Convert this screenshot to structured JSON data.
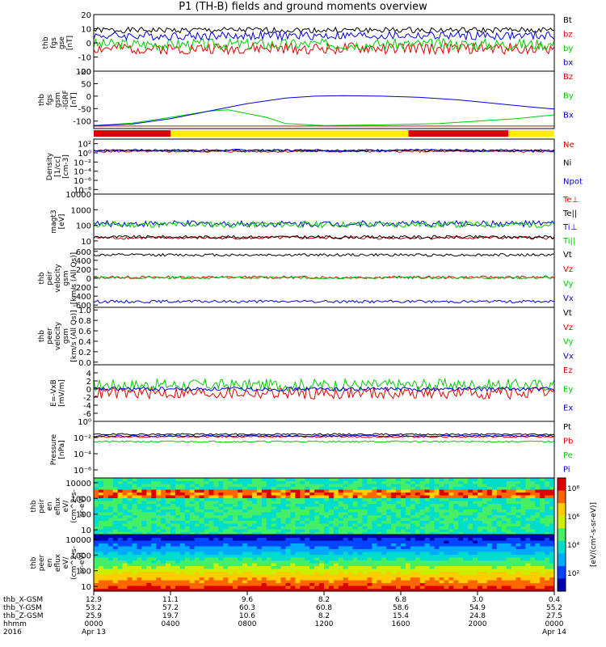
{
  "title": "P1 (TH-B) fields and ground moments overview",
  "colors": {
    "black": "#000000",
    "red": "#e00000",
    "green": "#00cc00",
    "blue": "#0000dd",
    "yellow": "#ffee00",
    "barRed": "#dd0000"
  },
  "chart_data": [
    {
      "type": "line",
      "id": "fgs",
      "ylabel": [
        "thb",
        "fgs",
        "gse",
        "[nT]"
      ],
      "ylim": [
        -20,
        20
      ],
      "yticks": [
        {
          "v": 20,
          "t": "20"
        },
        {
          "v": 10,
          "t": "10"
        },
        {
          "v": 0,
          "t": "0"
        },
        {
          "v": -10,
          "t": "-10"
        },
        {
          "v": -20,
          "t": "-20"
        }
      ],
      "series": [
        {
          "name": "Bt",
          "color": "black",
          "mode": "noise",
          "base": 9,
          "amp": 2,
          "seed": 1
        },
        {
          "name": "bz",
          "color": "red",
          "mode": "noise",
          "base": -4,
          "amp": 4,
          "seed": 2
        },
        {
          "name": "by",
          "color": "green",
          "mode": "noise",
          "base": -1,
          "amp": 4,
          "seed": 3
        },
        {
          "name": "bx",
          "color": "blue",
          "mode": "noise",
          "base": 5,
          "amp": 3,
          "seed": 4
        }
      ]
    },
    {
      "type": "line",
      "id": "fgsm",
      "ylabel": [
        "thb",
        "fgs",
        "gsm",
        "-IGRF",
        "[nT]"
      ],
      "ylim": [
        -130,
        100
      ],
      "yticks": [
        {
          "v": 100,
          "t": "100"
        },
        {
          "v": 50,
          "t": "50"
        },
        {
          "v": 0,
          "t": "0"
        },
        {
          "v": -50,
          "t": "-50"
        },
        {
          "v": -100,
          "t": "-100"
        }
      ],
      "series": [
        {
          "name": "Bz",
          "color": "red",
          "mode": "flat",
          "points": [
            [
              0,
              -120
            ],
            [
              24,
              -120
            ]
          ]
        },
        {
          "name": "By",
          "color": "green",
          "mode": "curve",
          "points": [
            [
              0,
              -118
            ],
            [
              2,
              -108
            ],
            [
              4,
              -85
            ],
            [
              6,
              -60
            ],
            [
              7,
              -55
            ],
            [
              9,
              -85
            ],
            [
              10,
              -110
            ],
            [
              12,
              -118
            ],
            [
              15,
              -115
            ],
            [
              18,
              -110
            ],
            [
              20,
              -100
            ],
            [
              22,
              -90
            ],
            [
              24,
              -75
            ]
          ]
        },
        {
          "name": "Bx",
          "color": "blue",
          "mode": "curve",
          "points": [
            [
              0,
              -118
            ],
            [
              2,
              -112
            ],
            [
              4,
              -90
            ],
            [
              6,
              -60
            ],
            [
              8,
              -30
            ],
            [
              10,
              -8
            ],
            [
              11.5,
              0
            ],
            [
              13,
              2
            ],
            [
              15,
              0
            ],
            [
              17,
              -5
            ],
            [
              19,
              -15
            ],
            [
              21,
              -30
            ],
            [
              23,
              -45
            ],
            [
              24,
              -52
            ]
          ]
        }
      ]
    },
    {
      "type": "bar",
      "id": "region_bar",
      "segments": [
        {
          "from": 0,
          "to": 4,
          "color": "barRed"
        },
        {
          "from": 4,
          "to": 16.4,
          "color": "yellow"
        },
        {
          "from": 16.4,
          "to": 21.6,
          "color": "barRed"
        },
        {
          "from": 21.6,
          "to": 24,
          "color": "yellow"
        }
      ]
    },
    {
      "type": "line",
      "id": "density",
      "log": true,
      "ylabel": [
        "Density",
        "[1/cc]",
        "[cm-3]"
      ],
      "ylim": [
        1e-09,
        1000
      ],
      "yticks": [
        {
          "v": 100,
          "t": "10²"
        },
        {
          "v": 1,
          "t": "10⁰"
        },
        {
          "v": 0.01,
          "t": "10⁻²"
        },
        {
          "v": 0.0001,
          "t": "10⁻⁴"
        },
        {
          "v": 1e-06,
          "t": "10⁻⁶"
        },
        {
          "v": 1e-08,
          "t": "10⁻⁸"
        }
      ],
      "series": [
        {
          "name": "Ne",
          "color": "red",
          "mode": "noise",
          "base": 0.3,
          "amp": 0.2,
          "seed": 5
        },
        {
          "name": "Ni",
          "color": "black",
          "mode": "noise",
          "base": 0.5,
          "amp": 0.2,
          "seed": 6
        },
        {
          "name": "Npot",
          "color": "blue",
          "mode": "noise",
          "base": 0.6,
          "amp": 0.2,
          "seed": 7
        }
      ]
    },
    {
      "type": "line",
      "id": "temperature",
      "log": true,
      "ylabel": [
        "magt3",
        "[eV]"
      ],
      "ylim": [
        3,
        10000
      ],
      "yticks": [
        {
          "v": 10000,
          "t": "10000"
        },
        {
          "v": 1000,
          "t": "1000"
        },
        {
          "v": 100,
          "t": "100"
        },
        {
          "v": 10,
          "t": "10"
        }
      ],
      "series": [
        {
          "name": "Te⊥",
          "color": "red",
          "mode": "noise",
          "base": 1.2,
          "amp": 0.1,
          "seed": 8
        },
        {
          "name": "Te||",
          "color": "black",
          "mode": "noise",
          "base": 1.25,
          "amp": 0.1,
          "seed": 9
        },
        {
          "name": "Ti⊥",
          "color": "blue",
          "mode": "noise",
          "base": 2.1,
          "amp": 0.2,
          "seed": 10
        },
        {
          "name": "Ti||",
          "color": "green",
          "mode": "noise",
          "base": 2.05,
          "amp": 0.2,
          "seed": 11
        }
      ]
    },
    {
      "type": "line",
      "id": "velocity_gsm",
      "ylabel": [
        "thb",
        "peir",
        "velocity",
        "gsm",
        "[km/s (All Qs)]"
      ],
      "ylim": [
        -650,
        650
      ],
      "yticks": [
        {
          "v": 600,
          "t": "600"
        },
        {
          "v": 400,
          "t": "400"
        },
        {
          "v": 200,
          "t": "200"
        },
        {
          "v": 0,
          "t": "0"
        },
        {
          "v": -200,
          "t": "-200"
        },
        {
          "v": -400,
          "t": "-400"
        },
        {
          "v": -600,
          "t": "-600"
        }
      ],
      "series": [
        {
          "name": "Vt",
          "color": "black",
          "mode": "noise",
          "base": 520,
          "amp": 30,
          "seed": 12
        },
        {
          "name": "Vz",
          "color": "red",
          "mode": "noise",
          "base": 20,
          "amp": 30,
          "seed": 13
        },
        {
          "name": "Vy",
          "color": "green",
          "mode": "noise",
          "base": 10,
          "amp": 25,
          "seed": 14
        },
        {
          "name": "Vx",
          "color": "blue",
          "mode": "noise",
          "base": -520,
          "amp": 30,
          "seed": 15
        }
      ]
    },
    {
      "type": "line",
      "id": "velocity_peer",
      "ylabel": [
        "thb",
        "peer",
        "velocity",
        "gsm",
        "[km/s (All Qs)]"
      ],
      "ylim": [
        -0.05,
        1.05
      ],
      "yticks": [
        {
          "v": 1,
          "t": "1.0"
        },
        {
          "v": 0.8,
          "t": "0.8"
        },
        {
          "v": 0.6,
          "t": "0.6"
        },
        {
          "v": 0.4,
          "t": "0.4"
        },
        {
          "v": 0.2,
          "t": "0.2"
        },
        {
          "v": 0,
          "t": "0.0"
        }
      ],
      "series": [
        {
          "name": "Vt",
          "color": "black",
          "points": []
        },
        {
          "name": "Vz",
          "color": "red",
          "points": []
        },
        {
          "name": "Vy",
          "color": "green",
          "points": []
        },
        {
          "name": "Vx",
          "color": "blue",
          "points": []
        }
      ]
    },
    {
      "type": "line",
      "id": "efield",
      "ylabel": [
        "E=-VxB",
        "[mV/m]"
      ],
      "ylim": [
        -8,
        6
      ],
      "yticks": [
        {
          "v": 4,
          "t": "4"
        },
        {
          "v": 2,
          "t": "2"
        },
        {
          "v": 0,
          "t": "0"
        },
        {
          "v": -2,
          "t": "-2"
        },
        {
          "v": -4,
          "t": "-4"
        },
        {
          "v": -6,
          "t": "-6"
        }
      ],
      "series": [
        {
          "name": "Ez",
          "color": "red",
          "mode": "noise",
          "base": -1,
          "amp": 1.5,
          "seed": 16
        },
        {
          "name": "Ey",
          "color": "green",
          "mode": "noise",
          "base": 1,
          "amp": 1.5,
          "seed": 17
        },
        {
          "name": "Ex",
          "color": "blue",
          "mode": "noise",
          "base": 0,
          "amp": 0.5,
          "seed": 18
        }
      ]
    },
    {
      "type": "line",
      "id": "pressure",
      "log": true,
      "ylabel": [
        "Pressure",
        "[nPa]"
      ],
      "ylim": [
        1e-07,
        1
      ],
      "yticks": [
        {
          "v": 1,
          "t": "10⁰"
        },
        {
          "v": 0.01,
          "t": "10⁻²"
        },
        {
          "v": 0.0001,
          "t": "10⁻⁴"
        },
        {
          "v": 1e-06,
          "t": "10⁻⁶"
        }
      ],
      "series": [
        {
          "name": "Pt",
          "color": "black",
          "mode": "noise",
          "base": -1.6,
          "amp": 0.1,
          "seed": 19
        },
        {
          "name": "Pb",
          "color": "red",
          "mode": "noise",
          "base": -1.9,
          "amp": 0.1,
          "seed": 20
        },
        {
          "name": "Pe",
          "color": "green",
          "mode": "noise",
          "base": -2.5,
          "amp": 0.1,
          "seed": 21
        },
        {
          "name": "Pi",
          "color": "blue",
          "mode": "noise",
          "base": -1.8,
          "amp": 0.1,
          "seed": 22
        }
      ]
    },
    {
      "type": "heatmap",
      "id": "peir_eflux",
      "ylabel": [
        "thb",
        "peir",
        "en",
        "eflux",
        "eV/",
        "(cm^2-s-",
        "sr-eV)"
      ],
      "log": true,
      "ylim": [
        5,
        20000
      ],
      "yticks": [
        {
          "v": 10000,
          "t": "10000"
        },
        {
          "v": 1000,
          "t": "1000"
        },
        {
          "v": 100,
          "t": "100"
        },
        {
          "v": 10,
          "t": "10"
        }
      ]
    },
    {
      "type": "heatmap",
      "id": "peer_eflux",
      "ylabel": [
        "thb",
        "peer",
        "en",
        "eflux",
        "eV/",
        "(cm^2-s-",
        "sr-eV)"
      ],
      "log": true,
      "ylim": [
        5,
        20000
      ],
      "yticks": [
        {
          "v": 10000,
          "t": "10000"
        },
        {
          "v": 1000,
          "t": "1000"
        },
        {
          "v": 100,
          "t": "100"
        },
        {
          "v": 10,
          "t": "10"
        }
      ]
    }
  ],
  "colorbar": {
    "label": "[eV/(cm²-s-sr-eV)]",
    "ticks": [
      "10⁸",
      "10⁶",
      "10⁴",
      "10²"
    ]
  },
  "xaxis": {
    "rows": [
      {
        "label": "thb_X-GSM",
        "values": [
          "12.9",
          "11.1",
          "9.6",
          "8.2",
          "6.8",
          "3.0",
          "0.4"
        ]
      },
      {
        "label": "thb_Y-GSM",
        "values": [
          "53.2",
          "57.2",
          "60.3",
          "60.8",
          "58.6",
          "54.9",
          "55.2"
        ]
      },
      {
        "label": "thb_Z-GSM",
        "values": [
          "25.9",
          "19.7",
          "10.6",
          "8.2",
          "15.4",
          "24.8",
          "27.5"
        ]
      },
      {
        "label": "hhmm",
        "values": [
          "0000",
          "0400",
          "0800",
          "1200",
          "1600",
          "2000",
          "0000"
        ]
      },
      {
        "label": "2016",
        "values": [
          "Apr 13",
          "",
          "",
          "",
          "",
          "",
          "Apr 14"
        ]
      }
    ],
    "hours": [
      0,
      4,
      8,
      12,
      16,
      20,
      24
    ]
  }
}
